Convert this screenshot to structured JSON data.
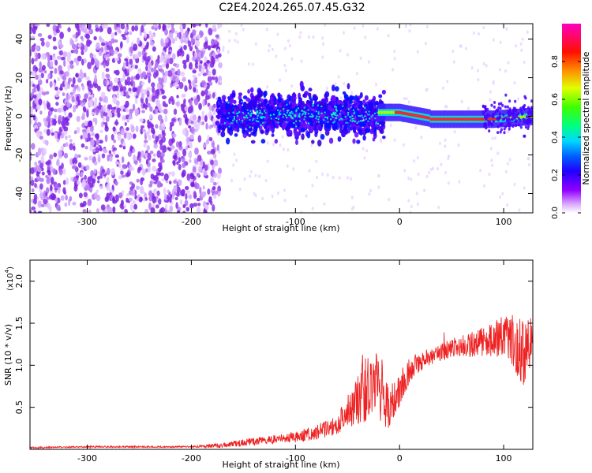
{
  "figure": {
    "title": "C2E4.2024.265.07.45.G32"
  },
  "chart_data": [
    {
      "type": "heatmap",
      "xlabel": "Height of straight line (km)",
      "ylabel": "Frequency (Hz)",
      "xlim": [
        -355,
        128
      ],
      "ylim": [
        -50,
        48
      ],
      "xticks": [
        -300,
        -200,
        -100,
        0,
        100
      ],
      "yticks": [
        -40,
        -20,
        0,
        20,
        40
      ],
      "colorbar": {
        "label": "Normalized spectral amplitude",
        "range": [
          0.0,
          1.0
        ],
        "ticks": [
          0.0,
          0.2,
          0.4,
          0.6,
          0.8
        ],
        "tick_labels": [
          "0.0",
          "0.2",
          "0.4",
          "0.6",
          "0.8"
        ],
        "colormap": [
          "#ffffff",
          "#c000ff",
          "#4000ff",
          "#0000ff",
          "#00c0ff",
          "#00ff80",
          "#40ff00",
          "#ffff00",
          "#ff8000",
          "#ff0000",
          "#ff00a0"
        ]
      },
      "regions": [
        {
          "x_range": [
            -355,
            -175
          ],
          "freq_range": [
            -50,
            48
          ],
          "level": 0.15,
          "description_level": "scattered noise"
        },
        {
          "x_range": [
            -175,
            -20
          ],
          "freq_range": [
            -15,
            12
          ],
          "level": 0.3
        },
        {
          "x_range": [
            -20,
            128
          ],
          "freq_center": [
            2,
            0,
            -2,
            -2,
            -1
          ],
          "level": 0.9
        }
      ]
    },
    {
      "type": "line",
      "xlabel": "Height of straight line (km)",
      "ylabel": "SNR (10 * v/v)",
      "y_multiplier": "(x10",
      "y_multiplier_exp": "4",
      "xlim": [
        -355,
        128
      ],
      "ylim": [
        0,
        2.25
      ],
      "xticks": [
        -300,
        -200,
        -100,
        0,
        100
      ],
      "yticks": [
        0.5,
        1.0,
        1.5,
        2.0
      ],
      "ytick_labels": [
        "0.5",
        "1.0",
        "1.5",
        "2.0"
      ],
      "series": [
        {
          "color": "#ee2222",
          "x": [
            -355,
            -300,
            -250,
            -200,
            -170,
            -150,
            -120,
            -100,
            -80,
            -60,
            -50,
            -40,
            -30,
            -20,
            -15,
            -10,
            0,
            10,
            20,
            30,
            50,
            70,
            90,
            100,
            110,
            120,
            128
          ],
          "y": [
            0.02,
            0.03,
            0.03,
            0.03,
            0.05,
            0.08,
            0.12,
            0.15,
            0.2,
            0.3,
            0.45,
            0.6,
            0.75,
            0.85,
            0.55,
            0.5,
            0.7,
            0.95,
            1.05,
            1.1,
            1.2,
            1.25,
            1.3,
            1.35,
            1.25,
            1.15,
            1.2
          ],
          "noise": [
            0.01,
            0.01,
            0.01,
            0.01,
            0.03,
            0.04,
            0.05,
            0.07,
            0.09,
            0.12,
            0.2,
            0.3,
            0.45,
            0.5,
            0.35,
            0.25,
            0.2,
            0.15,
            0.12,
            0.1,
            0.12,
            0.15,
            0.2,
            0.25,
            0.35,
            0.45,
            0.4
          ]
        }
      ]
    }
  ]
}
